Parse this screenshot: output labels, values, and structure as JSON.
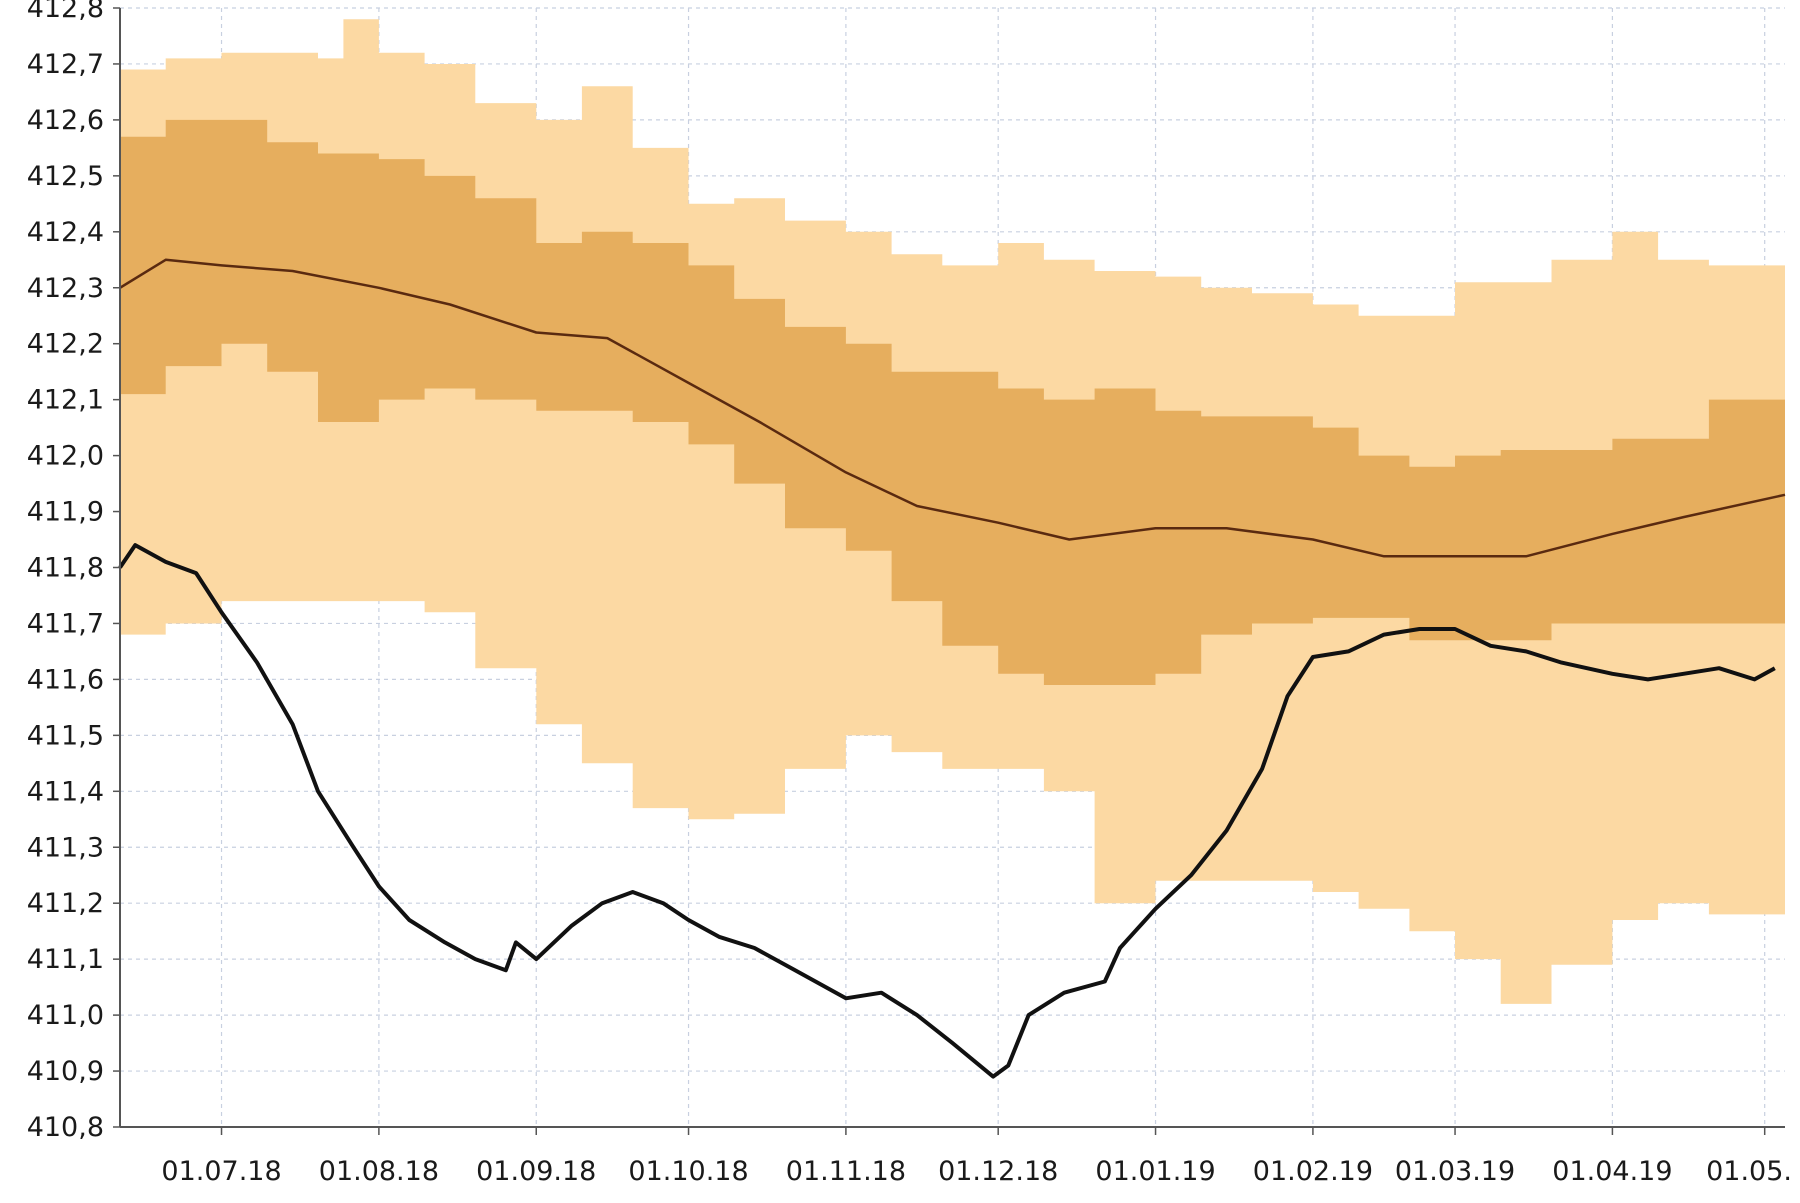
{
  "chart_data": {
    "type": "area",
    "title": "",
    "xlabel": "",
    "ylabel": "",
    "x_tick_labels": [
      "01.07.18",
      "01.08.18",
      "01.09.18",
      "01.10.18",
      "01.11.18",
      "01.12.18",
      "01.01.19",
      "01.02.19",
      "01.03.19",
      "01.04.19",
      "01.05."
    ],
    "y_tick_labels": [
      "410,8",
      "410,9",
      "411,0",
      "411,1",
      "411,2",
      "411,3",
      "411,4",
      "411,5",
      "411,6",
      "411,7",
      "411,8",
      "411,9",
      "412,0",
      "412,1",
      "412,2",
      "412,3",
      "412,4",
      "412,5",
      "412,6",
      "412,7",
      "412,8"
    ],
    "ylim": [
      410.8,
      412.8
    ],
    "xlim": [
      "2018-06-11",
      "2019-05-05"
    ],
    "grid": true,
    "colors": {
      "outer_band": "#fcd9a3",
      "inner_band": "#e6ae5e",
      "median": "#5a2a10",
      "observed": "#111111",
      "grid": "#c8d0e0",
      "axis": "#555555"
    },
    "series": [
      {
        "role": "outer-band",
        "x": [
          "2018-06-11",
          "2018-06-20",
          "2018-07-01",
          "2018-07-10",
          "2018-07-20",
          "2018-07-25",
          "2018-08-01",
          "2018-08-10",
          "2018-08-20",
          "2018-09-01",
          "2018-09-10",
          "2018-09-20",
          "2018-10-01",
          "2018-10-10",
          "2018-10-20",
          "2018-11-01",
          "2018-11-10",
          "2018-11-20",
          "2018-12-01",
          "2018-12-10",
          "2018-12-20",
          "2019-01-01",
          "2019-01-10",
          "2019-01-20",
          "2019-02-01",
          "2019-02-10",
          "2019-02-20",
          "2019-03-01",
          "2019-03-10",
          "2019-03-20",
          "2019-04-01",
          "2019-04-10",
          "2019-04-20",
          "2019-05-05"
        ],
        "upper": [
          412.69,
          412.71,
          412.72,
          412.72,
          412.71,
          412.78,
          412.72,
          412.7,
          412.63,
          412.6,
          412.66,
          412.55,
          412.45,
          412.46,
          412.42,
          412.4,
          412.36,
          412.34,
          412.38,
          412.35,
          412.33,
          412.32,
          412.3,
          412.29,
          412.27,
          412.25,
          412.25,
          412.31,
          412.31,
          412.35,
          412.4,
          412.35,
          412.34,
          412.4
        ],
        "lower": [
          411.68,
          411.7,
          411.74,
          411.74,
          411.74,
          411.74,
          411.74,
          411.72,
          411.62,
          411.52,
          411.45,
          411.37,
          411.35,
          411.36,
          411.44,
          411.5,
          411.47,
          411.44,
          411.44,
          411.4,
          411.2,
          411.24,
          411.24,
          411.24,
          411.22,
          411.19,
          411.15,
          411.1,
          411.02,
          411.09,
          411.17,
          411.2,
          411.18,
          411.18
        ]
      },
      {
        "role": "inner-band",
        "x": [
          "2018-06-11",
          "2018-06-20",
          "2018-07-01",
          "2018-07-10",
          "2018-07-20",
          "2018-08-01",
          "2018-08-10",
          "2018-08-20",
          "2018-09-01",
          "2018-09-10",
          "2018-09-20",
          "2018-10-01",
          "2018-10-10",
          "2018-10-20",
          "2018-11-01",
          "2018-11-10",
          "2018-11-20",
          "2018-12-01",
          "2018-12-10",
          "2018-12-20",
          "2019-01-01",
          "2019-01-10",
          "2019-01-20",
          "2019-02-01",
          "2019-02-10",
          "2019-02-20",
          "2019-03-01",
          "2019-03-10",
          "2019-03-20",
          "2019-04-01",
          "2019-04-10",
          "2019-04-20",
          "2019-05-05"
        ],
        "upper": [
          412.57,
          412.6,
          412.6,
          412.56,
          412.54,
          412.53,
          412.5,
          412.46,
          412.38,
          412.4,
          412.38,
          412.34,
          412.28,
          412.23,
          412.2,
          412.15,
          412.15,
          412.12,
          412.1,
          412.12,
          412.08,
          412.07,
          412.07,
          412.05,
          412.0,
          411.98,
          412.0,
          412.01,
          412.01,
          412.03,
          412.03,
          412.1,
          412.19
        ],
        "lower": [
          412.11,
          412.16,
          412.2,
          412.15,
          412.06,
          412.1,
          412.12,
          412.1,
          412.08,
          412.08,
          412.06,
          412.02,
          411.95,
          411.87,
          411.83,
          411.74,
          411.66,
          411.61,
          411.59,
          411.59,
          411.61,
          411.68,
          411.7,
          411.71,
          411.71,
          411.67,
          411.67,
          411.67,
          411.7,
          411.7,
          411.7,
          411.7,
          411.75
        ]
      },
      {
        "role": "median",
        "x": [
          "2018-06-11",
          "2018-06-20",
          "2018-07-01",
          "2018-07-15",
          "2018-08-01",
          "2018-08-15",
          "2018-09-01",
          "2018-09-15",
          "2018-10-01",
          "2018-10-15",
          "2018-11-01",
          "2018-11-15",
          "2018-12-01",
          "2018-12-15",
          "2019-01-01",
          "2019-01-15",
          "2019-02-01",
          "2019-02-15",
          "2019-03-01",
          "2019-03-15",
          "2019-04-01",
          "2019-04-15",
          "2019-05-05"
        ],
        "values": [
          412.3,
          412.35,
          412.34,
          412.33,
          412.3,
          412.27,
          412.22,
          412.21,
          412.13,
          412.06,
          411.97,
          411.91,
          411.88,
          411.85,
          411.87,
          411.87,
          411.85,
          411.82,
          411.82,
          411.82,
          411.86,
          411.89,
          411.93
        ]
      },
      {
        "role": "observed",
        "x": [
          "2018-06-11",
          "2018-06-14",
          "2018-06-20",
          "2018-06-26",
          "2018-07-01",
          "2018-07-08",
          "2018-07-15",
          "2018-07-20",
          "2018-07-27",
          "2018-08-01",
          "2018-08-07",
          "2018-08-14",
          "2018-08-20",
          "2018-08-26",
          "2018-08-28",
          "2018-09-01",
          "2018-09-08",
          "2018-09-14",
          "2018-09-20",
          "2018-09-26",
          "2018-10-01",
          "2018-10-07",
          "2018-10-14",
          "2018-10-22",
          "2018-11-01",
          "2018-11-08",
          "2018-11-15",
          "2018-11-22",
          "2018-11-30",
          "2018-12-03",
          "2018-12-07",
          "2018-12-14",
          "2018-12-22",
          "2018-12-25",
          "2018-12-28",
          "2019-01-01",
          "2019-01-08",
          "2019-01-15",
          "2019-01-22",
          "2019-01-27",
          "2019-02-01",
          "2019-02-08",
          "2019-02-15",
          "2019-02-22",
          "2019-03-01",
          "2019-03-08",
          "2019-03-15",
          "2019-03-22",
          "2019-04-01",
          "2019-04-08",
          "2019-04-15",
          "2019-04-22",
          "2019-04-29",
          "2019-05-03"
        ],
        "values": [
          411.8,
          411.84,
          411.81,
          411.79,
          411.72,
          411.63,
          411.52,
          411.4,
          411.3,
          411.23,
          411.17,
          411.13,
          411.1,
          411.08,
          411.13,
          411.1,
          411.16,
          411.2,
          411.22,
          411.2,
          411.17,
          411.14,
          411.12,
          411.08,
          411.03,
          411.04,
          411.0,
          410.95,
          410.89,
          410.91,
          411.0,
          411.04,
          411.06,
          411.12,
          411.15,
          411.19,
          411.25,
          411.33,
          411.44,
          411.57,
          411.64,
          411.65,
          411.68,
          411.69,
          411.69,
          411.66,
          411.65,
          411.63,
          411.61,
          411.6,
          411.61,
          411.62,
          411.6,
          411.62
        ]
      }
    ]
  }
}
